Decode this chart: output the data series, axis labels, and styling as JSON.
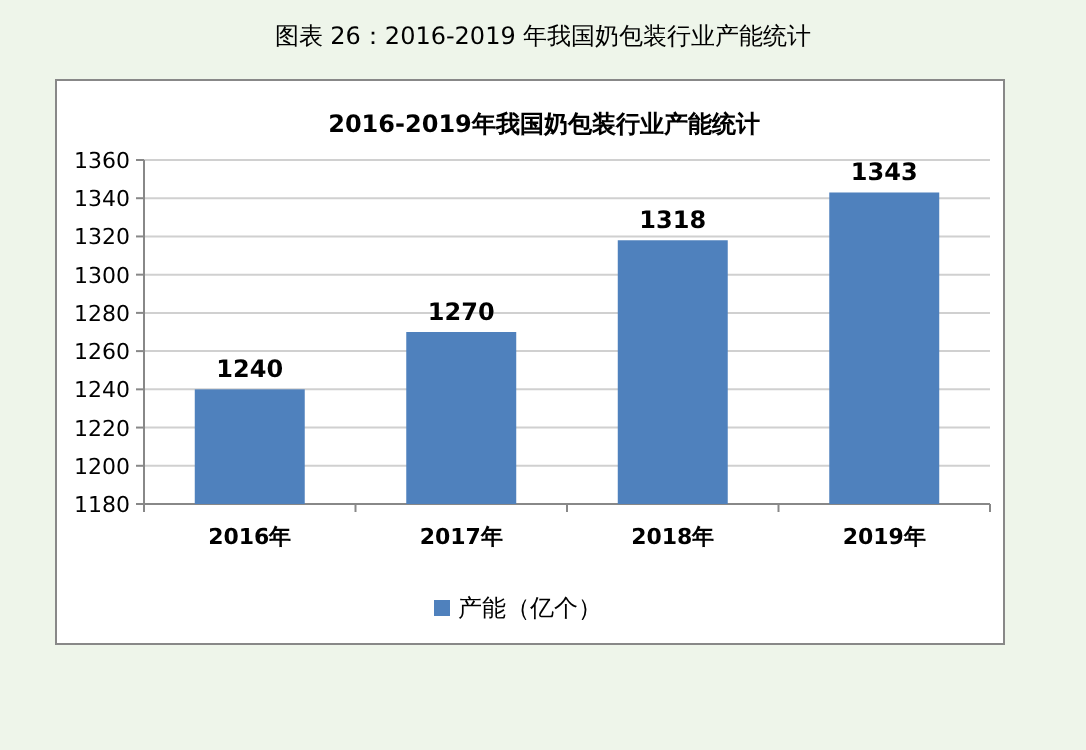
{
  "chart_data": {
    "type": "bar",
    "title": "2016-2019年我国奶包装行业产能统计",
    "annotations": [
      "图表  26：2016-2019 年我国奶包装行业产能统计"
    ],
    "categories": [
      "2016年",
      "2017年",
      "2018年",
      "2019年"
    ],
    "series": [
      {
        "name": "产能（亿个）",
        "color": "#4f81bd",
        "values": [
          1240,
          1270,
          1318,
          1343
        ]
      }
    ],
    "ylim": [
      1180,
      1360
    ],
    "yticks": [
      1180,
      1200,
      1220,
      1240,
      1260,
      1280,
      1300,
      1320,
      1340,
      1360
    ],
    "grid": "y",
    "legend": "bottom",
    "data_labels": true
  }
}
